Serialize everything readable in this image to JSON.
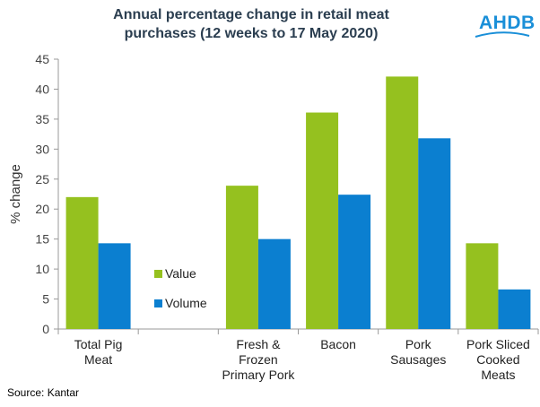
{
  "header": {
    "title_line1": "Annual percentage change in retail meat",
    "title_line2": "purchases (12 weeks to 17 May 2020)",
    "logo_text": "AHDB"
  },
  "footer": {
    "source": "Source: Kantar"
  },
  "colors": {
    "value": "#95c11f",
    "volume": "#0b7fd0"
  },
  "chart_data": {
    "type": "bar",
    "title": "Annual percentage change in retail meat purchases (12 weeks to 17 May 2020)",
    "xlabel": "",
    "ylabel": "% change",
    "ylim": [
      0,
      45
    ],
    "yticks": [
      0,
      5,
      10,
      15,
      20,
      25,
      30,
      35,
      40,
      45
    ],
    "legend_position": "left-middle",
    "categories": [
      [
        "Total Pig",
        "Meat"
      ],
      [],
      [
        "Fresh &",
        "Frozen",
        "Primary Pork"
      ],
      [
        "Bacon"
      ],
      [
        "Pork",
        "Sausages"
      ],
      [
        "Pork Sliced",
        "Cooked",
        "Meats"
      ]
    ],
    "series": [
      {
        "name": "Value",
        "values": [
          22,
          null,
          23.9,
          36.1,
          42.1,
          14.3
        ]
      },
      {
        "name": "Volume",
        "values": [
          14.3,
          null,
          15,
          22.4,
          31.8,
          6.6
        ]
      }
    ]
  }
}
